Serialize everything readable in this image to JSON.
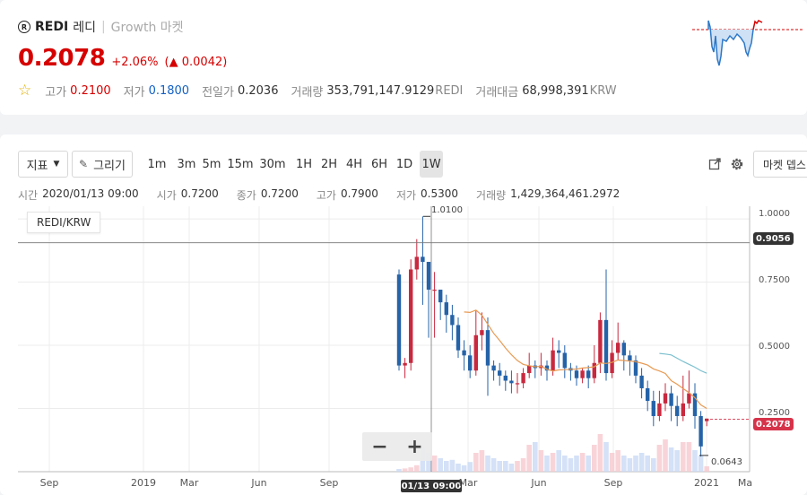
{
  "header": {
    "logo_glyph": "R",
    "symbol": "REDI",
    "korean_name": "레디",
    "separator": "|",
    "market_type": "Growth 마켓",
    "price": "0.2078",
    "change_pct": "+2.06%",
    "change_value": "(▲ 0.0042)",
    "high_label": "고가",
    "high_value": "0.2100",
    "low_label": "저가",
    "low_value": "0.1800",
    "prev_label": "전일가",
    "prev_value": "0.2036",
    "volume_label": "거래량",
    "volume_value": "353,791,147.9129",
    "volume_unit": "REDI",
    "amount_label": "거래대금",
    "amount_value": "68,998,391",
    "amount_unit": "KRW"
  },
  "toolbar": {
    "indicator_label": "지표",
    "draw_label": "그리기",
    "timeframes": [
      "1m",
      "3m",
      "5m",
      "15m",
      "30m",
      "1H",
      "2H",
      "4H",
      "6H",
      "1D",
      "1W"
    ],
    "active_timeframe": "1W",
    "market_depth_label": "마켓 뎁스"
  },
  "ohlc": {
    "time_label": "시간",
    "time_value": "2020/01/13 09:00",
    "open_label": "시가",
    "open_value": "0.7200",
    "close_label": "종가",
    "close_value": "0.7200",
    "high_label": "고가",
    "high_value": "0.7900",
    "low_label": "저가",
    "low_value": "0.5300",
    "volume_label": "거래량",
    "volume_value": "1,429,364,461.2972"
  },
  "chart": {
    "pair_label": "REDI/KRW",
    "zoom_out": "−",
    "zoom_in": "+",
    "crosshair_price": "0.9056",
    "current_price": "0.2078",
    "max_label": "1.0100",
    "min_label": "0.0643",
    "crosshair_time": "01/13 09:00",
    "x_ticks": [
      "Sep",
      "2019",
      "Mar",
      "Jun",
      "Sep",
      "Mar",
      "Jun",
      "Sep",
      "2021",
      "Ma"
    ],
    "y_ticks": [
      "1.0000",
      "0.7500",
      "0.5000",
      "0.2500"
    ]
  },
  "colors": {
    "up": "#d60000",
    "down": "#1261c4",
    "candle_up": "#c8293f",
    "candle_down": "#2563a8",
    "ma_orange": "#e89a52",
    "ma_teal": "#7cc0cf"
  },
  "chart_data": {
    "type": "candlestick",
    "y_range": [
      0.0,
      1.05
    ],
    "candles": [
      [
        0.78,
        0.42,
        0.8,
        0.4
      ],
      [
        0.42,
        0.43,
        0.45,
        0.37
      ],
      [
        0.43,
        0.8,
        0.84,
        0.4
      ],
      [
        0.8,
        0.85,
        0.92,
        0.76
      ],
      [
        0.85,
        0.83,
        1.01,
        0.66
      ],
      [
        0.83,
        0.72,
        0.79,
        0.53
      ],
      [
        0.72,
        0.72,
        0.79,
        0.53
      ],
      [
        0.72,
        0.67,
        0.72,
        0.6
      ],
      [
        0.67,
        0.62,
        0.7,
        0.55
      ],
      [
        0.62,
        0.58,
        0.66,
        0.52
      ],
      [
        0.58,
        0.48,
        0.61,
        0.45
      ],
      [
        0.48,
        0.46,
        0.52,
        0.4
      ],
      [
        0.46,
        0.4,
        0.5,
        0.37
      ],
      [
        0.4,
        0.54,
        0.64,
        0.38
      ],
      [
        0.54,
        0.56,
        0.63,
        0.48
      ],
      [
        0.56,
        0.42,
        0.61,
        0.3
      ],
      [
        0.42,
        0.4,
        0.44,
        0.36
      ],
      [
        0.4,
        0.38,
        0.43,
        0.34
      ],
      [
        0.38,
        0.36,
        0.4,
        0.32
      ],
      [
        0.36,
        0.35,
        0.4,
        0.31
      ],
      [
        0.35,
        0.35,
        0.39,
        0.31
      ],
      [
        0.35,
        0.39,
        0.41,
        0.33
      ],
      [
        0.39,
        0.42,
        0.47,
        0.37
      ],
      [
        0.42,
        0.41,
        0.44,
        0.37
      ],
      [
        0.41,
        0.42,
        0.47,
        0.38
      ],
      [
        0.42,
        0.4,
        0.44,
        0.36
      ],
      [
        0.4,
        0.48,
        0.53,
        0.38
      ],
      [
        0.48,
        0.47,
        0.52,
        0.41
      ],
      [
        0.47,
        0.41,
        0.5,
        0.37
      ],
      [
        0.41,
        0.4,
        0.43,
        0.36
      ],
      [
        0.4,
        0.37,
        0.42,
        0.34
      ],
      [
        0.37,
        0.4,
        0.41,
        0.35
      ],
      [
        0.4,
        0.37,
        0.42,
        0.33
      ],
      [
        0.37,
        0.43,
        0.5,
        0.35
      ],
      [
        0.43,
        0.6,
        0.63,
        0.39
      ],
      [
        0.6,
        0.39,
        0.8,
        0.36
      ],
      [
        0.39,
        0.47,
        0.52,
        0.37
      ],
      [
        0.47,
        0.51,
        0.59,
        0.44
      ],
      [
        0.51,
        0.46,
        0.52,
        0.4
      ],
      [
        0.46,
        0.44,
        0.48,
        0.38
      ],
      [
        0.44,
        0.38,
        0.46,
        0.35
      ],
      [
        0.38,
        0.33,
        0.41,
        0.29
      ],
      [
        0.33,
        0.28,
        0.36,
        0.24
      ],
      [
        0.28,
        0.22,
        0.32,
        0.18
      ],
      [
        0.22,
        0.27,
        0.32,
        0.2
      ],
      [
        0.27,
        0.31,
        0.35,
        0.24
      ],
      [
        0.31,
        0.26,
        0.34,
        0.2
      ],
      [
        0.26,
        0.22,
        0.3,
        0.18
      ],
      [
        0.22,
        0.27,
        0.38,
        0.2
      ],
      [
        0.27,
        0.31,
        0.4,
        0.25
      ],
      [
        0.31,
        0.22,
        0.35,
        0.17
      ],
      [
        0.22,
        0.1,
        0.24,
        0.06
      ],
      [
        0.2,
        0.21,
        0.21,
        0.18
      ]
    ],
    "volumes": [
      0.05,
      0.06,
      0.08,
      0.12,
      0.45,
      0.35,
      0.3,
      0.25,
      0.2,
      0.22,
      0.15,
      0.12,
      0.18,
      0.35,
      0.4,
      0.3,
      0.25,
      0.2,
      0.2,
      0.15,
      0.2,
      0.25,
      0.5,
      0.55,
      0.4,
      0.3,
      0.35,
      0.4,
      0.3,
      0.25,
      0.3,
      0.35,
      0.3,
      0.5,
      0.7,
      0.55,
      0.35,
      0.4,
      0.3,
      0.25,
      0.3,
      0.35,
      0.3,
      0.25,
      0.5,
      0.6,
      0.45,
      0.4,
      0.55,
      0.55,
      0.4,
      0.3,
      0.1
    ]
  }
}
